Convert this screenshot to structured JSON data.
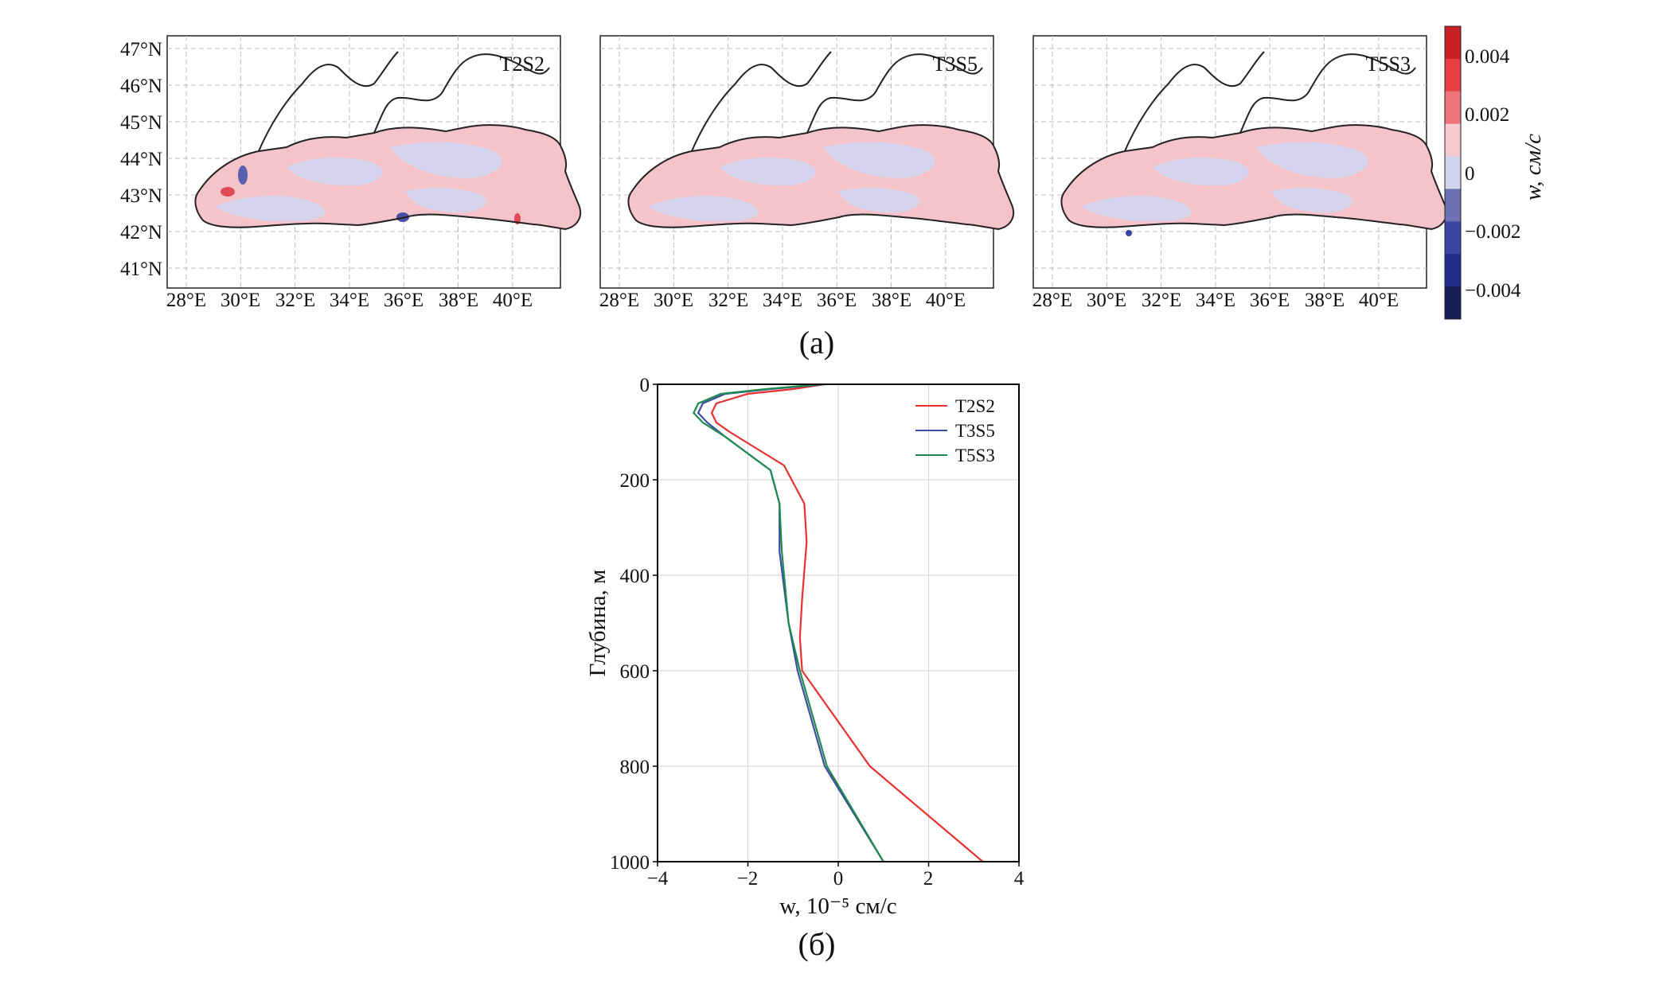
{
  "panel_a": {
    "caption": "(a)",
    "lon_ticks": [
      "28°E",
      "30°E",
      "32°E",
      "34°E",
      "36°E",
      "38°E",
      "40°E"
    ],
    "lat_ticks": [
      "47°N",
      "46°N",
      "45°N",
      "44°N",
      "43°N",
      "42°N",
      "41°N"
    ],
    "maps": [
      {
        "label": "T2S2"
      },
      {
        "label": "T3S5"
      },
      {
        "label": "T5S3"
      }
    ],
    "colorbar": {
      "title": "w, см/с",
      "tick_labels": [
        "0.004",
        "0.002",
        "0",
        "−0.002",
        "−0.004"
      ],
      "colors": [
        "#c92226",
        "#e63f45",
        "#ee7479",
        "#f6c9cc",
        "#d3d3ec",
        "#6e70b4",
        "#3b46a0",
        "#1f2d88",
        "#1a1f58"
      ]
    }
  },
  "panel_b": {
    "caption": "(б)",
    "xlabel": "w, 10⁻⁵ см/с",
    "ylabel": "Глубина, м",
    "x_tick_labels": [
      "−4",
      "−2",
      "0",
      "2",
      "4"
    ],
    "y_tick_labels": [
      "0",
      "200",
      "400",
      "600",
      "800",
      "1000"
    ]
  },
  "chart_data": {
    "type": "line",
    "title": "",
    "xlabel": "w, 10⁻⁵ см/с",
    "ylabel": "Глубина, м",
    "xlim": [
      -4,
      4
    ],
    "ylim": [
      1000,
      0
    ],
    "x_ticks": [
      -4,
      -2,
      0,
      2,
      4
    ],
    "y_ticks": [
      0,
      200,
      400,
      600,
      800,
      1000
    ],
    "grid": true,
    "legend_position": "top-right",
    "series": [
      {
        "name": "T2S2",
        "color": "#e8302f",
        "w": [
          -0.3,
          -1.0,
          -2.0,
          -2.7,
          -2.8,
          -2.7,
          -2.4,
          -1.2,
          -0.75,
          -0.7,
          -0.8,
          -0.85,
          -0.8,
          0.7,
          3.2
        ],
        "depth": [
          0,
          10,
          20,
          40,
          60,
          80,
          100,
          170,
          250,
          330,
          450,
          530,
          600,
          800,
          1000
        ]
      },
      {
        "name": "T3S5",
        "color": "#3d4ea3",
        "w": [
          -0.3,
          -1.5,
          -2.5,
          -3.0,
          -3.1,
          -2.9,
          -2.5,
          -1.5,
          -1.3,
          -1.3,
          -1.1,
          -0.9,
          -0.3,
          1.0
        ],
        "depth": [
          0,
          10,
          20,
          40,
          60,
          80,
          110,
          180,
          250,
          350,
          500,
          600,
          800,
          1000
        ]
      },
      {
        "name": "T5S3",
        "color": "#1e8a4e",
        "w": [
          -0.4,
          -1.6,
          -2.6,
          -3.1,
          -3.2,
          -3.0,
          -2.5,
          -1.5,
          -1.3,
          -1.25,
          -1.1,
          -0.85,
          -0.25,
          1.0
        ],
        "depth": [
          0,
          10,
          20,
          40,
          60,
          80,
          110,
          180,
          250,
          350,
          500,
          600,
          800,
          1000
        ]
      }
    ]
  }
}
